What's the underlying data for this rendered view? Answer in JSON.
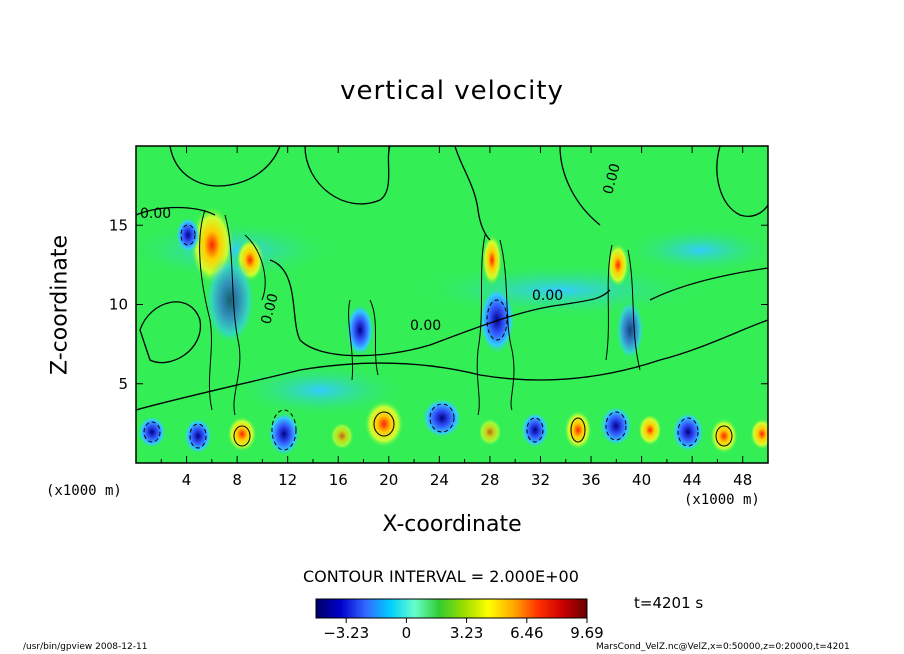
{
  "chart_data": {
    "type": "heatmap",
    "title": "vertical velocity",
    "xlabel": "X-coordinate",
    "ylabel": "Z-coordinate",
    "x_unit": "(x1000 m)",
    "y_unit": "(x1000 m)",
    "xlim": [
      0,
      50
    ],
    "ylim": [
      0,
      20
    ],
    "x_ticks": [
      4,
      8,
      12,
      16,
      20,
      24,
      28,
      32,
      36,
      40,
      44,
      48
    ],
    "y_ticks": [
      5,
      10,
      15
    ],
    "contour_interval_label": "CONTOUR INTERVAL = 2.000E+00",
    "contour_labels": [
      "0.00",
      "0.00",
      "0.00",
      "0.00",
      "0.00"
    ],
    "colorbar": {
      "min": -4.85,
      "max": 9.69,
      "tick_values": [
        -3.23,
        0,
        3.23,
        6.46,
        9.69
      ],
      "tick_labels": [
        "−3.23",
        "0",
        "3.23",
        "6.46",
        "9.69"
      ],
      "colors": [
        "#000066",
        "#0000cc",
        "#3366ff",
        "#00ccff",
        "#66ffcc",
        "#33cc33",
        "#99dd00",
        "#ffff00",
        "#ffaa00",
        "#ff3300",
        "#cc0000",
        "#660000"
      ]
    },
    "time_label": "t=4201  s",
    "background_color": "#33ee55"
  },
  "footer": {
    "left": "/usr/bin/gpview  2008-12-11",
    "right": "MarsCond_VelZ.nc@VelZ,x=0:50000,z=0:20000,t=4201"
  }
}
